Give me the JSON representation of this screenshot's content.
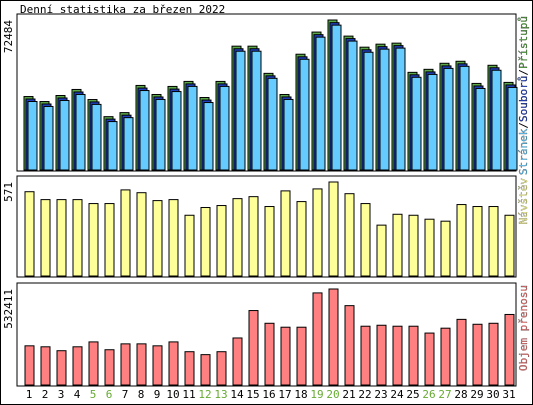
{
  "chart_data": [
    {
      "type": "bar",
      "title": "Denní statistika za březen 2022",
      "ylim": [
        0,
        72484
      ],
      "yticks": [
        72484
      ],
      "legend_separator": "/",
      "series": [
        {
          "name": "Přístupů",
          "color": "#5aa848",
          "values": [
            35500,
            33080,
            36000,
            38920,
            34050,
            25780,
            27730,
            40860,
            36490,
            40380,
            42810,
            35030,
            42810,
            59840,
            59840,
            46700,
            36490,
            55950,
            66650,
            72484,
            64700,
            59350,
            60810,
            61300,
            47190,
            48650,
            51570,
            52540,
            41840,
            50600,
            42330
          ]
        },
        {
          "name": "Souborů",
          "color": "#2040c0",
          "values": [
            34300,
            31900,
            34800,
            37700,
            32900,
            24600,
            26500,
            39600,
            35300,
            39100,
            41600,
            33800,
            41600,
            58600,
            58600,
            45500,
            35300,
            54700,
            65400,
            71200,
            63500,
            58100,
            59600,
            60100,
            46000,
            47400,
            50300,
            51300,
            40600,
            49400,
            41100
          ]
        },
        {
          "name": "Stránek",
          "color": "#66ccff",
          "values": [
            33100,
            30700,
            33600,
            36500,
            31700,
            23400,
            25300,
            38400,
            34100,
            37900,
            40400,
            32600,
            40400,
            57400,
            57400,
            44300,
            34100,
            53500,
            64200,
            70000,
            62300,
            56900,
            58400,
            58900,
            44800,
            46200,
            49100,
            50100,
            39400,
            48200,
            39900
          ]
        }
      ]
    },
    {
      "type": "bar",
      "ylim": [
        0,
        571
      ],
      "yticks": [
        571
      ],
      "series": [
        {
          "name": "Návštěv",
          "color": "#ffff99",
          "values": [
            512,
            464,
            464,
            464,
            440,
            440,
            523,
            506,
            458,
            464,
            369,
            416,
            428,
            470,
            482,
            422,
            517,
            452,
            529,
            571,
            500,
            440,
            309,
            375,
            369,
            345,
            333,
            434,
            422,
            422,
            369
          ]
        }
      ]
    },
    {
      "type": "bar",
      "ylim": [
        0,
        532411
      ],
      "yticks": [
        532411
      ],
      "series": [
        {
          "name": "Objem přenosu",
          "color": "#ff8080",
          "values": [
            217300,
            211900,
            190200,
            211900,
            239000,
            195600,
            228200,
            228200,
            217300,
            239000,
            184700,
            168400,
            184700,
            260800,
            412900,
            342300,
            320500,
            320500,
            510700,
            532411,
            440100,
            326000,
            331400,
            326000,
            326000,
            288000,
            315100,
            364000,
            336800,
            342300,
            391200
          ]
        }
      ],
      "categories": [
        "1",
        "2",
        "3",
        "4",
        "5",
        "6",
        "7",
        "8",
        "9",
        "10",
        "11",
        "12",
        "13",
        "14",
        "15",
        "16",
        "17",
        "18",
        "19",
        "20",
        "21",
        "22",
        "23",
        "24",
        "25",
        "26",
        "27",
        "28",
        "29",
        "30",
        "31"
      ],
      "category_colors": [
        "#000",
        "#000",
        "#000",
        "#000",
        "#6a3",
        "#6a3",
        "#000",
        "#000",
        "#000",
        "#000",
        "#000",
        "#6a3",
        "#6a3",
        "#000",
        "#000",
        "#000",
        "#000",
        "#000",
        "#6a3",
        "#6a3",
        "#000",
        "#000",
        "#000",
        "#000",
        "#000",
        "#6a3",
        "#6a3",
        "#000",
        "#000",
        "#000",
        "#000"
      ]
    }
  ]
}
